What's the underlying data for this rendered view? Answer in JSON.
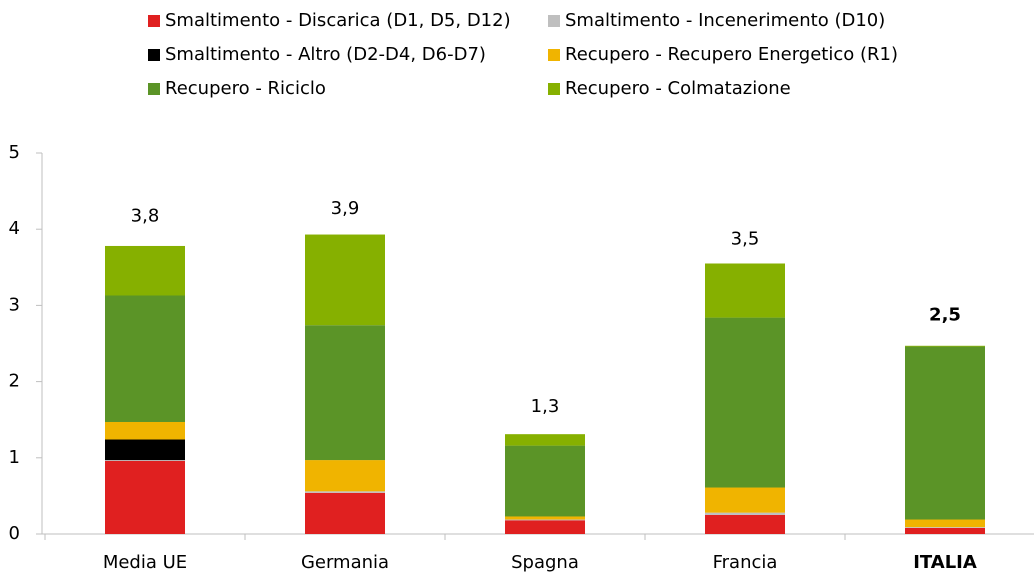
{
  "chart_data": {
    "type": "stacked_bar",
    "categories": [
      "Media UE",
      "Germania",
      "Spagna",
      "Francia",
      "ITALIA"
    ],
    "series": [
      {
        "name": "Smaltimento - Discarica (D1, D5, D12)",
        "color": "#e02020",
        "values": [
          0.96,
          0.54,
          0.18,
          0.25,
          0.08
        ]
      },
      {
        "name": "Smaltimento - Incenerimento (D10)",
        "color": "#bfbfbf",
        "values": [
          0.01,
          0.02,
          0.01,
          0.03,
          0.01
        ]
      },
      {
        "name": "Smaltimento - Altro (D2-D4, D6-D7)",
        "color": "#000000",
        "values": [
          0.27,
          0,
          0,
          0,
          0
        ]
      },
      {
        "name": "Recupero - Recupero Energetico (R1)",
        "color": "#f0b400",
        "values": [
          0.23,
          0.41,
          0.04,
          0.33,
          0.1
        ]
      },
      {
        "name": "Recupero - Riciclo",
        "color": "#5b9427",
        "values": [
          1.66,
          1.77,
          0.93,
          2.23,
          2.27
        ]
      },
      {
        "name": "Recupero - Colmatazione",
        "color": "#86b000",
        "values": [
          0.65,
          1.19,
          0.15,
          0.71,
          0.01
        ]
      }
    ],
    "totals": [
      3.8,
      3.9,
      1.3,
      3.5,
      2.5
    ],
    "total_labels": [
      "3,8",
      "3,9",
      "1,3",
      "3,5",
      "2,5"
    ],
    "bold_labels": [
      false,
      false,
      false,
      false,
      true
    ],
    "ylim": [
      0,
      5
    ],
    "yticks": [
      0,
      1,
      2,
      3,
      4,
      5
    ],
    "grid": false
  }
}
